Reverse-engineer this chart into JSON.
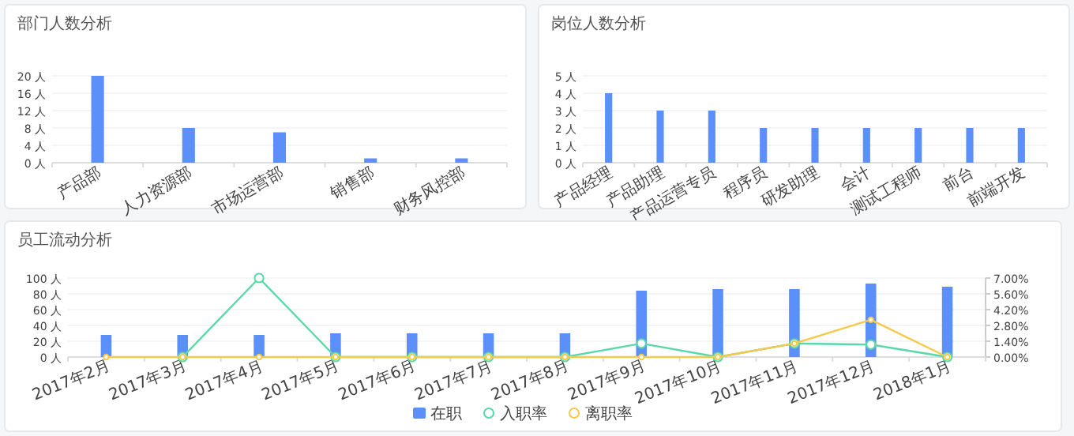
{
  "chart_data": [
    {
      "type": "bar",
      "title": "部门人数分析",
      "categories": [
        "产品部",
        "人力资源部",
        "市场运营部",
        "销售部",
        "财务风控部"
      ],
      "values": [
        20,
        8,
        7,
        1,
        1
      ],
      "color": "#5b8ff9",
      "ylim": [
        0,
        20
      ],
      "yticks": [
        {
          "value": 0,
          "label": "0 人"
        },
        {
          "value": 4,
          "label": "4 人"
        },
        {
          "value": 8,
          "label": "8 人"
        },
        {
          "value": 12,
          "label": "12 人"
        },
        {
          "value": 16,
          "label": "16 人"
        },
        {
          "value": 20,
          "label": "20 人"
        }
      ],
      "grid": "y"
    },
    {
      "type": "bar",
      "title": "岗位人数分析",
      "categories": [
        "产品经理",
        "产品助理",
        "产品运营专员",
        "程序员",
        "研发助理",
        "会计",
        "测试工程师",
        "前台",
        "前端开发"
      ],
      "values": [
        4,
        3,
        3,
        2,
        2,
        2,
        2,
        2,
        2
      ],
      "color": "#5b8ff9",
      "ylim": [
        0,
        5
      ],
      "yticks": [
        {
          "value": 0,
          "label": "0 人"
        },
        {
          "value": 1,
          "label": "1 人"
        },
        {
          "value": 2,
          "label": "2 人"
        },
        {
          "value": 3,
          "label": "3 人"
        },
        {
          "value": 4,
          "label": "4 人"
        },
        {
          "value": 5,
          "label": "5 人"
        }
      ],
      "grid": "y"
    },
    {
      "type": "bar",
      "title": "员工流动分析",
      "categories": [
        "2017年2月",
        "2017年3月",
        "2017年4月",
        "2017年5月",
        "2017年6月",
        "2017年7月",
        "2017年8月",
        "2017年9月",
        "2017年10月",
        "2017年11月",
        "2017年12月",
        "2018年1月"
      ],
      "series": [
        {
          "name": "在职",
          "type": "bar",
          "color": "#5b8ff9",
          "values": [
            28,
            28,
            28,
            30,
            30,
            30,
            30,
            84,
            86,
            86,
            93,
            89
          ]
        },
        {
          "name": "入职率",
          "type": "line",
          "axis": "y2",
          "color": "#5ad8a6",
          "values": [
            null,
            0,
            7,
            0,
            0,
            0,
            0,
            1.2,
            0,
            1.2,
            1.1,
            0
          ]
        },
        {
          "name": "离职率",
          "type": "line",
          "axis": "y2",
          "color": "#f6c94a",
          "values": [
            0,
            0,
            0,
            0,
            0,
            0,
            0,
            0,
            0,
            1.2,
            3.3,
            0
          ]
        }
      ],
      "ylim": [
        0,
        100
      ],
      "yticks": [
        {
          "value": 0,
          "label": "0 人"
        },
        {
          "value": 20,
          "label": "20 人"
        },
        {
          "value": 40,
          "label": "40 人"
        },
        {
          "value": 60,
          "label": "60 人"
        },
        {
          "value": 80,
          "label": "80 人"
        },
        {
          "value": 100,
          "label": "100 人"
        }
      ],
      "y2lim": [
        0,
        7
      ],
      "y2ticks": [
        {
          "value": 0,
          "label": "0.00%"
        },
        {
          "value": 1.4,
          "label": "1.40%"
        },
        {
          "value": 2.8,
          "label": "2.80%"
        },
        {
          "value": 4.2,
          "label": "4.20%"
        },
        {
          "value": 5.6,
          "label": "5.60%"
        },
        {
          "value": 7,
          "label": "7.00%"
        }
      ],
      "grid": "y",
      "legend": "bottom",
      "marker": "circle"
    }
  ]
}
